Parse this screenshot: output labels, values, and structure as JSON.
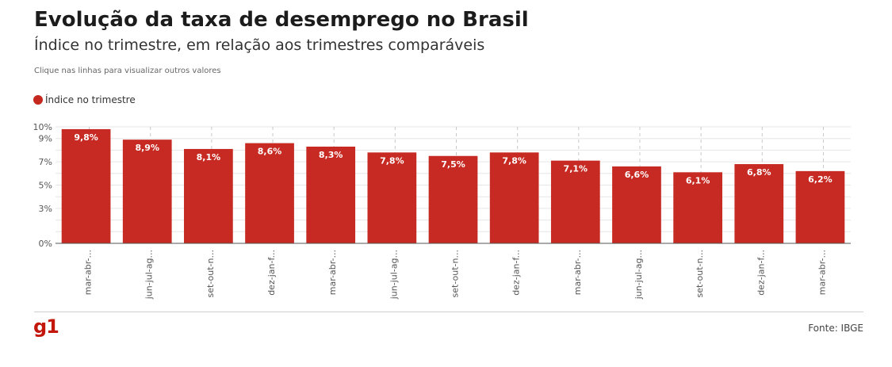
{
  "header": {
    "title": "Evolução da taxa de desemprego no Brasil",
    "subtitle": "Índice no trimestre, em relação aos trimestres comparáveis",
    "hint": "Clique nas linhas para visualizar outros valores"
  },
  "footer": {
    "logo": "g1",
    "source": "Fonte: IBGE"
  },
  "colors": {
    "bar": "#c62a22",
    "grid": "#e6e6e6",
    "axis": "#555555"
  },
  "chart_data": {
    "type": "bar",
    "title": "Evolução da taxa de desemprego no Brasil",
    "subtitle": "Índice no trimestre, em relação aos trimestres comparáveis",
    "xlabel": "",
    "ylabel": "",
    "ylim": [
      0,
      10
    ],
    "yticks": [
      "0%",
      "3%",
      "5%",
      "7%",
      "9%",
      "10%"
    ],
    "ytick_values": [
      0,
      3,
      5,
      7,
      9,
      10
    ],
    "grid": true,
    "legend_position": "top-left",
    "categories": [
      "mar-abr-...",
      "jun-jul-ag...",
      "set-out-n...",
      "dez-jan-f...",
      "mar-abr-...",
      "jun-jul-ag...",
      "set-out-n...",
      "dez-jan-f...",
      "mar-abr-...",
      "jun-jul-ag...",
      "set-out-n...",
      "dez-jan-f...",
      "mar-abr-..."
    ],
    "series": [
      {
        "name": "Índice no trimestre",
        "values": [
          9.8,
          8.9,
          8.1,
          8.6,
          8.3,
          7.8,
          7.5,
          7.8,
          7.1,
          6.6,
          6.1,
          6.8,
          6.2
        ],
        "labels": [
          "9,8%",
          "8,9%",
          "8,1%",
          "8,6%",
          "8,3%",
          "7,8%",
          "7,5%",
          "7,8%",
          "7,1%",
          "6,6%",
          "6,1%",
          "6,8%",
          "6,2%"
        ]
      }
    ]
  }
}
